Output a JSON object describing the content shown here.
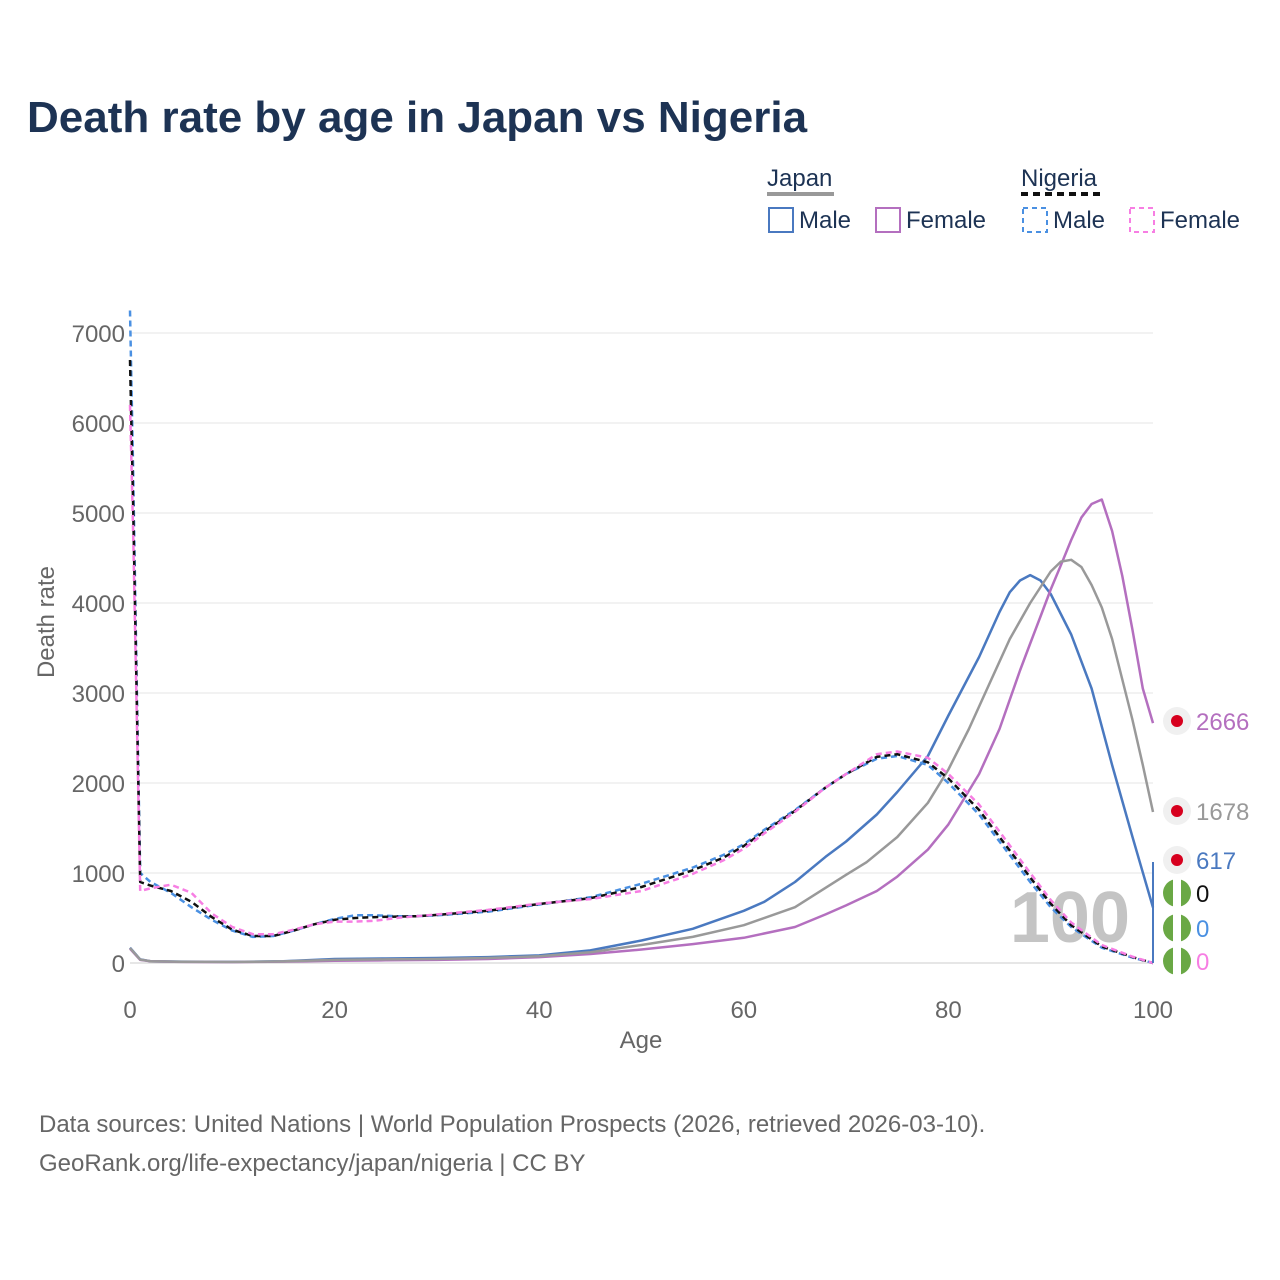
{
  "chart_data": {
    "type": "line",
    "title": "Death rate by age in Japan vs Nigeria",
    "xlabel": "Age",
    "ylabel": "Death rate",
    "xlim": [
      0,
      100
    ],
    "ylim": [
      0,
      7000
    ],
    "x_ticks": [
      "0",
      "20",
      "40",
      "60",
      "80",
      "100"
    ],
    "y_ticks": [
      "0",
      "1000",
      "2000",
      "3000",
      "4000",
      "5000",
      "6000",
      "7000"
    ],
    "grid": true,
    "legend": {
      "placement": "top-right",
      "groups": [
        {
          "title": "Japan",
          "items": [
            "Male",
            "Female"
          ]
        },
        {
          "title": "Nigeria",
          "items": [
            "Male",
            "Female"
          ]
        }
      ]
    },
    "watermark": "100",
    "series": [
      {
        "name": "Japan Male",
        "color": "#4a79c0",
        "dash": false,
        "end_label": "617",
        "x": [
          0,
          1,
          2,
          5,
          10,
          15,
          20,
          25,
          30,
          35,
          40,
          45,
          50,
          55,
          60,
          62,
          65,
          68,
          70,
          73,
          75,
          78,
          80,
          83,
          85,
          86,
          87,
          88,
          89,
          90,
          92,
          94,
          96,
          98,
          100
        ],
        "y": [
          170,
          40,
          20,
          15,
          12,
          20,
          45,
          50,
          55,
          65,
          85,
          140,
          250,
          380,
          580,
          680,
          900,
          1180,
          1350,
          1650,
          1900,
          2300,
          2750,
          3400,
          3900,
          4120,
          4250,
          4310,
          4250,
          4100,
          3650,
          3050,
          2200,
          1400,
          617
        ]
      },
      {
        "name": "Japan Female",
        "color": "#b46fbf",
        "dash": false,
        "end_label": "2666",
        "x": [
          0,
          1,
          2,
          5,
          10,
          15,
          20,
          25,
          30,
          35,
          40,
          45,
          50,
          55,
          60,
          65,
          68,
          70,
          73,
          75,
          78,
          80,
          83,
          85,
          87,
          88,
          89,
          90,
          91,
          92,
          93,
          94,
          95,
          96,
          97,
          98,
          99,
          100
        ],
        "y": [
          160,
          35,
          20,
          12,
          10,
          15,
          25,
          30,
          35,
          45,
          65,
          100,
          150,
          210,
          280,
          400,
          540,
          640,
          800,
          960,
          1260,
          1540,
          2100,
          2600,
          3250,
          3550,
          3850,
          4150,
          4420,
          4700,
          4950,
          5100,
          5150,
          4800,
          4300,
          3700,
          3050,
          2666
        ]
      },
      {
        "name": "Japan Total",
        "color": "#999999",
        "dash": false,
        "end_label": "1678",
        "x": [
          0,
          1,
          2,
          5,
          10,
          15,
          20,
          25,
          30,
          35,
          40,
          45,
          50,
          55,
          60,
          65,
          70,
          72,
          75,
          78,
          80,
          82,
          84,
          86,
          88,
          90,
          91,
          92,
          93,
          94,
          95,
          96,
          97,
          98,
          99,
          100
        ],
        "y": [
          165,
          38,
          20,
          14,
          11,
          18,
          35,
          40,
          45,
          55,
          75,
          120,
          200,
          290,
          420,
          620,
          980,
          1120,
          1400,
          1780,
          2150,
          2600,
          3100,
          3600,
          4000,
          4350,
          4460,
          4480,
          4400,
          4200,
          3950,
          3600,
          3150,
          2700,
          2200,
          1678
        ]
      },
      {
        "name": "Nigeria Male",
        "color": "#4a90e2",
        "dash": true,
        "end_label": "0",
        "x": [
          0,
          0.3,
          0.7,
          1,
          2,
          4,
          6,
          8,
          10,
          12,
          14,
          16,
          18,
          20,
          22,
          24,
          26,
          28,
          30,
          35,
          40,
          45,
          50,
          55,
          58,
          60,
          62,
          65,
          68,
          70,
          73,
          75,
          78,
          80,
          83,
          85,
          88,
          90,
          92,
          95,
          98,
          100
        ],
        "y": [
          7250,
          5500,
          2800,
          1000,
          900,
          780,
          620,
          480,
          360,
          290,
          300,
          360,
          430,
          490,
          530,
          530,
          520,
          520,
          530,
          570,
          650,
          730,
          880,
          1060,
          1200,
          1320,
          1480,
          1700,
          1950,
          2100,
          2270,
          2300,
          2200,
          2000,
          1650,
          1350,
          900,
          620,
          400,
          170,
          60,
          0
        ]
      },
      {
        "name": "Nigeria Female",
        "color": "#f77ee3",
        "dash": true,
        "end_label": "0",
        "x": [
          0,
          0.3,
          0.7,
          1,
          2,
          4,
          6,
          8,
          10,
          12,
          14,
          16,
          18,
          20,
          22,
          24,
          26,
          28,
          30,
          35,
          40,
          45,
          50,
          55,
          58,
          60,
          62,
          65,
          68,
          70,
          73,
          75,
          78,
          80,
          83,
          85,
          88,
          90,
          92,
          95,
          98,
          100
        ],
        "y": [
          6200,
          4800,
          2500,
          800,
          830,
          870,
          780,
          550,
          400,
          320,
          320,
          370,
          430,
          460,
          460,
          470,
          500,
          520,
          540,
          590,
          660,
          710,
          800,
          990,
          1140,
          1270,
          1440,
          1680,
          1950,
          2100,
          2320,
          2350,
          2280,
          2100,
          1760,
          1460,
          1000,
          700,
          450,
          200,
          70,
          0
        ]
      },
      {
        "name": "Nigeria Total",
        "color": "#111111",
        "dash": true,
        "end_label": "0",
        "x": [
          0,
          0.3,
          0.7,
          1,
          2,
          4,
          6,
          8,
          10,
          12,
          14,
          16,
          18,
          20,
          22,
          24,
          26,
          28,
          30,
          35,
          40,
          45,
          50,
          55,
          58,
          60,
          62,
          65,
          68,
          70,
          73,
          75,
          78,
          80,
          83,
          85,
          88,
          90,
          92,
          95,
          98,
          100
        ],
        "y": [
          6700,
          5100,
          2650,
          900,
          860,
          800,
          680,
          510,
          370,
          300,
          300,
          360,
          430,
          480,
          500,
          510,
          515,
          520,
          535,
          580,
          655,
          720,
          845,
          1030,
          1170,
          1300,
          1460,
          1690,
          1950,
          2100,
          2290,
          2320,
          2230,
          2050,
          1700,
          1400,
          950,
          660,
          420,
          185,
          65,
          0
        ]
      }
    ],
    "end_markers": [
      {
        "label": "2666",
        "flag": "japan-flag"
      },
      {
        "label": "1678",
        "flag": "japan-flag"
      },
      {
        "label": "617",
        "flag": "japan-flag"
      },
      {
        "label": "0",
        "flag": "nigeria-flag"
      },
      {
        "label": "0",
        "flag": "nigeria-flag"
      },
      {
        "label": "0",
        "flag": "nigeria-flag"
      }
    ],
    "source_line1": "Data sources: United Nations | World Population Prospects (2026, retrieved 2026-03-10).",
    "source_line2": "GeoRank.org/life-expectancy/japan/nigeria | CC BY"
  },
  "colors": {
    "title": "#1d3354",
    "axis_text": "#666666",
    "grid": "#e6e6e6",
    "watermark": "#c4c4c4",
    "japan_red": "#d7001e",
    "nigeria_green": "#6aa845"
  }
}
